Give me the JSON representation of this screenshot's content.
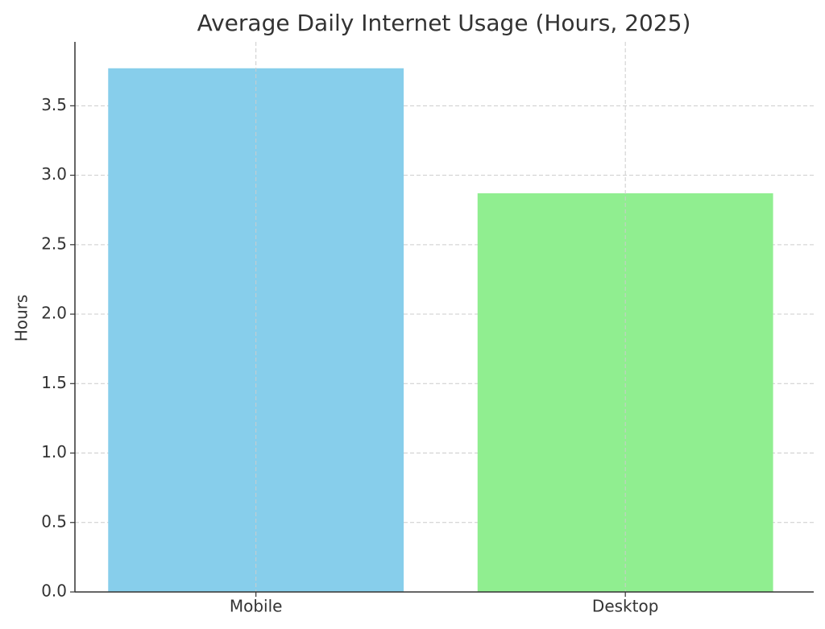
{
  "chart_data": {
    "type": "bar",
    "title": "Average Daily Internet Usage (Hours, 2025)",
    "y_label": "Hours",
    "categories": [
      "Mobile",
      "Desktop"
    ],
    "values": [
      3.77,
      2.87
    ],
    "colors": [
      "#87ceeb",
      "#90ee90"
    ],
    "ylim": [
      0,
      3.96
    ],
    "yticks": [
      {
        "value": 0,
        "label": "0.0"
      },
      {
        "value": 0.5,
        "label": "0.5"
      },
      {
        "value": 1,
        "label": "1.0"
      },
      {
        "value": 1.5,
        "label": "1.5"
      },
      {
        "value": 2,
        "label": "2.0"
      },
      {
        "value": 2.5,
        "label": "2.5"
      },
      {
        "value": 3,
        "label": "3.0"
      },
      {
        "value": 3.5,
        "label": "3.5"
      }
    ],
    "grid": true
  }
}
